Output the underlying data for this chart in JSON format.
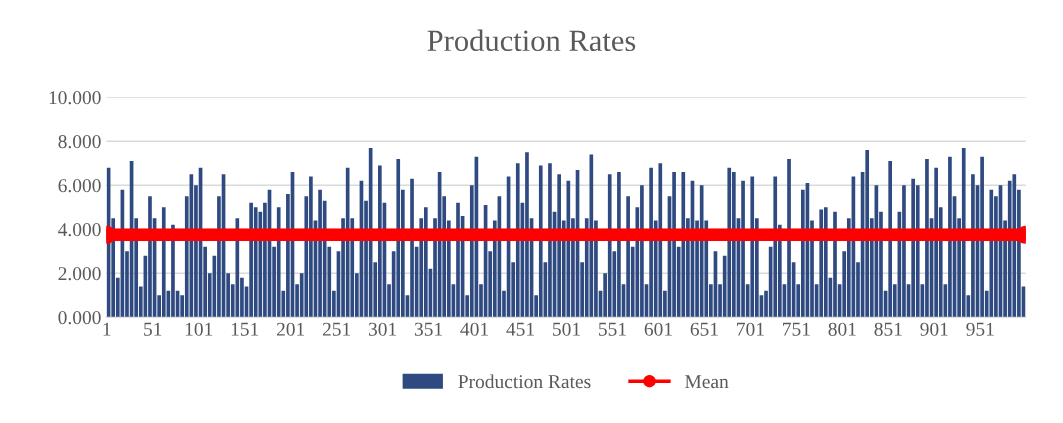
{
  "chart_data": {
    "type": "bar",
    "title": "Production Rates",
    "x": [
      1,
      6,
      11,
      16,
      21,
      26,
      31,
      36,
      41,
      46,
      51,
      56,
      61,
      66,
      71,
      76,
      81,
      86,
      91,
      96,
      101,
      106,
      111,
      116,
      121,
      126,
      131,
      136,
      141,
      146,
      151,
      156,
      161,
      166,
      171,
      176,
      181,
      186,
      191,
      196,
      201,
      206,
      211,
      216,
      221,
      226,
      231,
      236,
      241,
      246,
      251,
      256,
      261,
      266,
      271,
      276,
      281,
      286,
      291,
      296,
      301,
      306,
      311,
      316,
      321,
      326,
      331,
      336,
      341,
      346,
      351,
      356,
      361,
      366,
      371,
      376,
      381,
      386,
      391,
      396,
      401,
      406,
      411,
      416,
      421,
      426,
      431,
      436,
      441,
      446,
      451,
      456,
      461,
      466,
      471,
      476,
      481,
      486,
      491,
      496,
      501,
      506,
      511,
      516,
      521,
      526,
      531,
      536,
      541,
      546,
      551,
      556,
      561,
      566,
      571,
      576,
      581,
      586,
      591,
      596,
      601,
      606,
      611,
      616,
      621,
      626,
      631,
      636,
      641,
      646,
      651,
      656,
      661,
      666,
      671,
      676,
      681,
      686,
      691,
      696,
      701,
      706,
      711,
      716,
      721,
      726,
      731,
      736,
      741,
      746,
      751,
      756,
      761,
      766,
      771,
      776,
      781,
      786,
      791,
      796,
      801,
      806,
      811,
      816,
      821,
      826,
      831,
      836,
      841,
      846,
      851,
      856,
      861,
      866,
      871,
      876,
      881,
      886,
      891,
      896,
      901,
      906,
      911,
      916,
      921,
      926,
      931,
      936,
      941,
      946,
      951,
      956,
      961,
      966,
      971,
      976,
      981,
      986,
      991,
      996
    ],
    "series": [
      {
        "name": "Production Rates",
        "color": "#2f4a80",
        "values": [
          6.8,
          4.5,
          1.8,
          5.8,
          3.0,
          7.1,
          4.5,
          1.4,
          2.8,
          5.5,
          4.5,
          1.0,
          5.0,
          1.2,
          4.2,
          1.2,
          1.0,
          5.5,
          6.5,
          6.0,
          6.8,
          3.2,
          2.0,
          2.8,
          5.5,
          6.5,
          2.0,
          1.5,
          4.5,
          1.8,
          1.4,
          5.2,
          5.0,
          4.8,
          5.2,
          5.8,
          3.2,
          5.0,
          1.2,
          5.6,
          6.6,
          1.5,
          2.0,
          5.5,
          6.4,
          4.4,
          5.8,
          5.3,
          3.2,
          1.2,
          3.0,
          4.5,
          6.8,
          4.5,
          2.0,
          6.2,
          5.3,
          7.7,
          2.5,
          6.9,
          5.2,
          1.5,
          3.0,
          7.2,
          5.8,
          1.0,
          6.3,
          3.2,
          4.5,
          5.0,
          2.2,
          4.5,
          6.6,
          5.5,
          4.4,
          1.5,
          5.2,
          4.6,
          1.0,
          6.0,
          7.3,
          1.5,
          5.1,
          3.0,
          4.4,
          5.5,
          1.2,
          6.4,
          2.5,
          7.0,
          5.2,
          7.5,
          4.5,
          1.0,
          6.9,
          2.5,
          7.0,
          4.8,
          6.5,
          4.4,
          6.2,
          4.5,
          6.7,
          2.5,
          4.5,
          7.4,
          4.4,
          1.2,
          2.0,
          6.5,
          3.0,
          6.6,
          1.5,
          5.5,
          3.2,
          5.0,
          6.0,
          1.5,
          6.8,
          4.4,
          7.0,
          1.2,
          5.5,
          6.6,
          3.2,
          6.6,
          4.5,
          6.2,
          4.4,
          6.0,
          4.4,
          1.5,
          3.0,
          1.5,
          2.8,
          6.8,
          6.6,
          4.5,
          6.2,
          1.5,
          6.4,
          4.5,
          1.0,
          1.2,
          3.2,
          6.4,
          4.2,
          1.5,
          7.2,
          2.5,
          1.5,
          5.8,
          6.1,
          4.4,
          1.5,
          4.9,
          5.0,
          1.8,
          4.8,
          1.5,
          3.0,
          4.5,
          6.4,
          2.5,
          6.6,
          7.6,
          4.5,
          6.0,
          4.8,
          1.2,
          7.1,
          1.5,
          4.8,
          6.0,
          1.5,
          6.3,
          6.0,
          1.5,
          7.2,
          4.5,
          6.8,
          5.0,
          1.5,
          7.3,
          5.5,
          4.5,
          7.7,
          1.0,
          6.5,
          6.0,
          7.3,
          1.2,
          5.8,
          5.5,
          6.0,
          4.4,
          6.2,
          6.5,
          5.8,
          1.4
        ]
      },
      {
        "name": "Mean",
        "type": "line",
        "color": "#ff0000",
        "marker": "circle",
        "x": [
          1,
          1000
        ],
        "values": [
          3.75,
          3.75
        ]
      }
    ],
    "xlim": [
      0.5,
      1000.5
    ],
    "xticks": [
      1,
      51,
      101,
      151,
      201,
      251,
      301,
      351,
      401,
      451,
      501,
      551,
      601,
      651,
      701,
      751,
      801,
      851,
      901,
      951
    ],
    "ylim": [
      0,
      10
    ],
    "yticks": [
      {
        "value": 0,
        "label": "0.000"
      },
      {
        "value": 2,
        "label": "2.000"
      },
      {
        "value": 4,
        "label": "4.000"
      },
      {
        "value": 6,
        "label": "6.000"
      },
      {
        "value": 8,
        "label": "8.000"
      },
      {
        "value": 10,
        "label": "10.000"
      }
    ],
    "grid": "y",
    "legend": "bottom"
  }
}
